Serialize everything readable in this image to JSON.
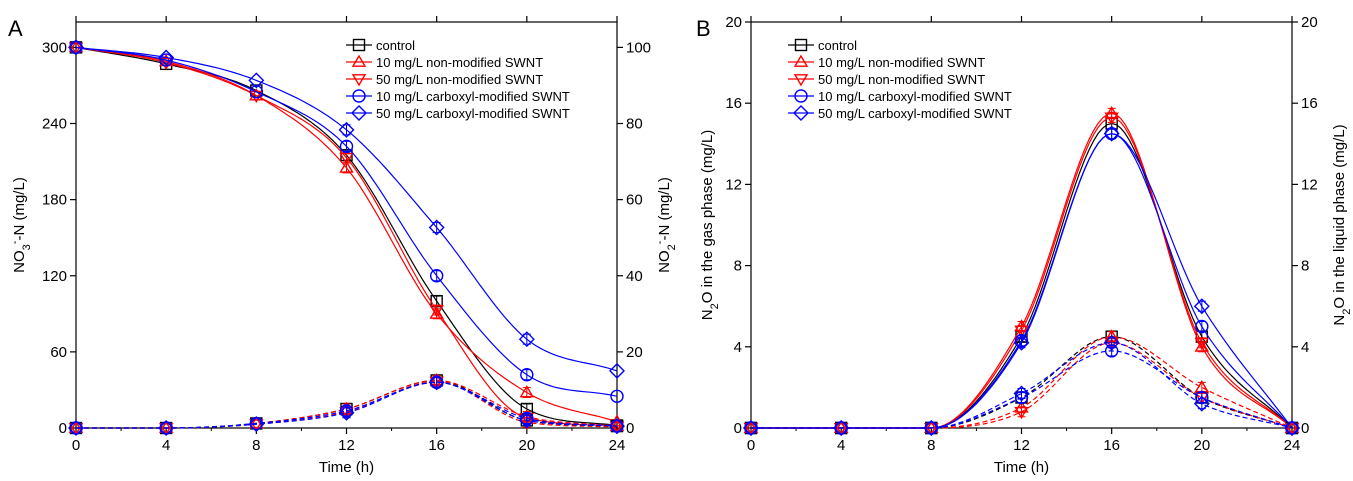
{
  "chart_data": [
    {
      "type": "line",
      "panel_label": "A",
      "xlabel": "Time (h)",
      "ylabel_left_main": "NO",
      "ylabel_left_sub": "3",
      "ylabel_left_sup": "-",
      "ylabel_left_tail": "-N (mg/L)",
      "ylabel_right_main": "NO",
      "ylabel_right_sub": "2",
      "ylabel_right_sup": "-",
      "ylabel_right_tail": "-N (mg/L)",
      "xlim": [
        0,
        24
      ],
      "ylim_left": [
        0,
        320
      ],
      "ylim_right": [
        0,
        106.67
      ],
      "x_ticks": [
        "0",
        "4",
        "8",
        "12",
        "16",
        "20",
        "24"
      ],
      "y_ticks_left": [
        "0",
        "60",
        "120",
        "180",
        "240",
        "300"
      ],
      "y_ticks_right": [
        "0",
        "20",
        "40",
        "60",
        "80",
        "100"
      ],
      "legend_position": "top-right",
      "x": [
        0,
        4,
        8,
        12,
        16,
        20,
        24
      ],
      "series": [
        {
          "name": "control",
          "marker": "square",
          "color": "#000000",
          "axis": "left",
          "values": [
            300,
            287,
            266,
            215,
            100,
            15,
            2
          ]
        },
        {
          "name": "10 mg/L non-modified SWNT",
          "marker": "triangle-up",
          "color": "#ff0000",
          "axis": "left",
          "values": [
            300,
            289,
            262,
            205,
            90,
            28,
            5
          ]
        },
        {
          "name": "50 mg/L non-modified SWNT",
          "marker": "triangle-down",
          "color": "#ff0000",
          "axis": "left",
          "values": [
            300,
            288,
            262,
            213,
            93,
            8,
            2
          ]
        },
        {
          "name": "10 mg/L carboxyl-modified SWNT",
          "marker": "circle",
          "color": "#0000ff",
          "axis": "left",
          "values": [
            300,
            290,
            265,
            222,
            120,
            42,
            25
          ]
        },
        {
          "name": "50 mg/L carboxyl-modified SWNT",
          "marker": "diamond",
          "color": "#0000ff",
          "axis": "left",
          "values": [
            300,
            292,
            274,
            235,
            158,
            70,
            45
          ]
        },
        {
          "name": "control",
          "marker": "square",
          "color": "#000000",
          "axis": "right",
          "values": [
            0,
            0,
            1.2,
            5.0,
            12.5,
            2.0,
            0.5
          ]
        },
        {
          "name": "10 mg/L non-modified SWNT",
          "marker": "triangle-up",
          "color": "#ff0000",
          "axis": "right",
          "values": [
            0,
            0,
            1.2,
            5.0,
            12.5,
            3.0,
            0.5
          ]
        },
        {
          "name": "50 mg/L non-modified SWNT",
          "marker": "triangle-down",
          "color": "#ff0000",
          "axis": "right",
          "values": [
            0,
            0,
            1.0,
            4.2,
            12.2,
            1.5,
            0.3
          ]
        },
        {
          "name": "10 mg/L carboxyl-modified SWNT",
          "marker": "circle",
          "color": "#0000ff",
          "axis": "right",
          "values": [
            0,
            0,
            1.2,
            4.5,
            12.0,
            2.5,
            0.5
          ]
        },
        {
          "name": "50 mg/L carboxyl-modified SWNT",
          "marker": "diamond",
          "color": "#0000ff",
          "axis": "right",
          "values": [
            0,
            0,
            1.0,
            4.0,
            12.0,
            2.0,
            0.5
          ]
        }
      ]
    },
    {
      "type": "line",
      "panel_label": "B",
      "xlabel": "Time (h)",
      "ylabel_left_pre": "N",
      "ylabel_left_sub": "2",
      "ylabel_left_tail": "O in the gas phase (mg/L)",
      "ylabel_right_pre": "N",
      "ylabel_right_sub": "2",
      "ylabel_right_tail": "O in the liquid phase (mg/L)",
      "xlim": [
        0,
        24
      ],
      "ylim_left": [
        0,
        20
      ],
      "ylim_right": [
        0,
        20
      ],
      "x_ticks": [
        "0",
        "4",
        "8",
        "12",
        "16",
        "20",
        "24"
      ],
      "y_ticks_left": [
        "0",
        "4",
        "8",
        "12",
        "16",
        "20"
      ],
      "y_ticks_right": [
        "0",
        "4",
        "8",
        "12",
        "16",
        "20"
      ],
      "legend_position": "top-left",
      "x": [
        0,
        4,
        8,
        12,
        16,
        20,
        24
      ],
      "series": [
        {
          "name": "control",
          "marker": "square",
          "color": "#000000",
          "axis": "left",
          "values": [
            0,
            0,
            0,
            4.5,
            15.0,
            4.5,
            0
          ]
        },
        {
          "name": "10 mg/L non-modified SWNT",
          "marker": "triangle-up",
          "color": "#ff0000",
          "axis": "left",
          "values": [
            0,
            0,
            0,
            5.0,
            15.5,
            4.0,
            0
          ]
        },
        {
          "name": "50 mg/L non-modified SWNT",
          "marker": "triangle-down",
          "color": "#ff0000",
          "axis": "left",
          "values": [
            0,
            0,
            0,
            4.8,
            15.3,
            4.2,
            0
          ]
        },
        {
          "name": "10 mg/L carboxyl-modified SWNT",
          "marker": "circle",
          "color": "#0000ff",
          "axis": "left",
          "values": [
            0,
            0,
            0,
            4.3,
            14.5,
            5.0,
            0
          ]
        },
        {
          "name": "50 mg/L carboxyl-modified SWNT",
          "marker": "diamond",
          "color": "#0000ff",
          "axis": "left",
          "values": [
            0,
            0,
            0,
            4.2,
            14.5,
            6.0,
            0
          ]
        },
        {
          "name": "control",
          "marker": "square",
          "color": "#000000",
          "axis": "right",
          "values": [
            0,
            0,
            0,
            1.5,
            4.5,
            1.5,
            0
          ]
        },
        {
          "name": "10 mg/L non-modified SWNT",
          "marker": "triangle-up",
          "color": "#ff0000",
          "axis": "right",
          "values": [
            0,
            0,
            0,
            1.0,
            4.5,
            2.0,
            0
          ]
        },
        {
          "name": "50 mg/L non-modified SWNT",
          "marker": "triangle-down",
          "color": "#ff0000",
          "axis": "right",
          "values": [
            0,
            0,
            0,
            0.8,
            4.2,
            1.5,
            0
          ]
        },
        {
          "name": "10 mg/L carboxyl-modified SWNT",
          "marker": "circle",
          "color": "#0000ff",
          "axis": "right",
          "values": [
            0,
            0,
            0,
            1.5,
            3.8,
            1.5,
            0
          ]
        },
        {
          "name": "50 mg/L carboxyl-modified SWNT",
          "marker": "diamond",
          "color": "#0000ff",
          "axis": "right",
          "values": [
            0,
            0,
            0,
            1.7,
            4.2,
            1.2,
            0
          ]
        }
      ]
    }
  ]
}
